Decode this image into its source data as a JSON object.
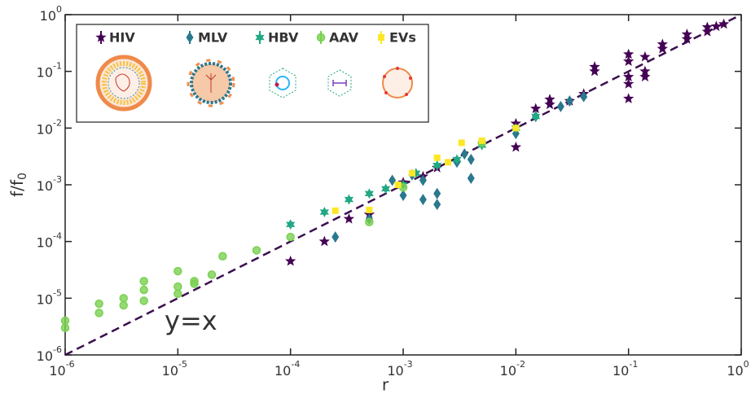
{
  "chart_data": {
    "type": "scatter",
    "xlabel": "r",
    "ylabel": {
      "text": "f/f",
      "subscript": "0"
    },
    "xscale": "log",
    "yscale": "log",
    "xlim": [
      1e-06,
      1
    ],
    "ylim": [
      1e-06,
      1
    ],
    "xticks": [
      {
        "value": 1e-06,
        "label": "10",
        "exponent": "-6"
      },
      {
        "value": 1e-05,
        "label": "10",
        "exponent": "-5"
      },
      {
        "value": 0.0001,
        "label": "10",
        "exponent": "-4"
      },
      {
        "value": 0.001,
        "label": "10",
        "exponent": "-3"
      },
      {
        "value": 0.01,
        "label": "10",
        "exponent": "-2"
      },
      {
        "value": 0.1,
        "label": "10",
        "exponent": "-1"
      },
      {
        "value": 1,
        "label": "10",
        "exponent": "0"
      }
    ],
    "yticks": [
      {
        "value": 1e-06,
        "label": "10",
        "exponent": "-6"
      },
      {
        "value": 1e-05,
        "label": "10",
        "exponent": "-5"
      },
      {
        "value": 0.0001,
        "label": "10",
        "exponent": "-4"
      },
      {
        "value": 0.001,
        "label": "10",
        "exponent": "-3"
      },
      {
        "value": 0.01,
        "label": "10",
        "exponent": "-2"
      },
      {
        "value": 0.1,
        "label": "10",
        "exponent": "-1"
      },
      {
        "value": 1,
        "label": "10",
        "exponent": "0"
      }
    ],
    "legend": "upper left",
    "reference_line": {
      "label": "y=x",
      "x": [
        1e-06,
        1
      ],
      "y": [
        1e-06,
        1
      ],
      "color": "#3b0f4f"
    },
    "series": [
      {
        "name": "HIV",
        "color": "#440154",
        "marker": "star",
        "x": [
          0.0001,
          0.0002,
          0.00033,
          0.0005,
          0.001,
          0.0015,
          0.002,
          0.01,
          0.01,
          0.015,
          0.02,
          0.02,
          0.03,
          0.04,
          0.05,
          0.05,
          0.1,
          0.1,
          0.1,
          0.1,
          0.1,
          0.14,
          0.14,
          0.14,
          0.2,
          0.2,
          0.33,
          0.33,
          0.5,
          0.5,
          0.6,
          0.7
        ],
        "values": [
          4.5e-05,
          0.0001,
          0.00025,
          0.0003,
          0.0011,
          0.0014,
          0.002,
          0.0046,
          0.012,
          0.022,
          0.032,
          0.026,
          0.03,
          0.04,
          0.12,
          0.1,
          0.2,
          0.15,
          0.08,
          0.06,
          0.033,
          0.18,
          0.1,
          0.08,
          0.3,
          0.25,
          0.45,
          0.37,
          0.6,
          0.5,
          0.62,
          0.68
        ]
      },
      {
        "name": "MLV",
        "color": "#2a788e",
        "marker": "diamond",
        "x": [
          0.00025,
          0.0005,
          0.0008,
          0.001,
          0.0012,
          0.0015,
          0.0015,
          0.002,
          0.002,
          0.003,
          0.0035,
          0.004,
          0.004,
          0.01,
          0.015,
          0.025,
          0.03,
          0.04
        ],
        "values": [
          0.00012,
          0.00025,
          0.0012,
          0.00065,
          0.0015,
          0.00055,
          0.0012,
          0.00045,
          0.0007,
          0.0025,
          0.0035,
          0.0028,
          0.0013,
          0.008,
          0.016,
          0.024,
          0.03,
          0.036
        ]
      },
      {
        "name": "HBV",
        "color": "#22a884",
        "marker": "hexstar",
        "x": [
          0.0001,
          0.0002,
          0.00033,
          0.0005,
          0.0007,
          0.001,
          0.0013,
          0.002,
          0.003,
          0.005,
          0.01,
          0.015
        ],
        "values": [
          0.0002,
          0.00033,
          0.00055,
          0.0007,
          0.00085,
          0.001,
          0.0016,
          0.0022,
          0.0028,
          0.005,
          0.01,
          0.016
        ]
      },
      {
        "name": "AAV",
        "color": "#7ad151",
        "marker": "circle",
        "x": [
          1e-06,
          1e-06,
          2e-06,
          2e-06,
          3.3e-06,
          3.3e-06,
          5e-06,
          5e-06,
          5e-06,
          1e-05,
          1e-05,
          1e-05,
          1.4e-05,
          1.4e-05,
          2e-05,
          2.5e-05,
          5e-05,
          0.0001,
          0.0005,
          0.001,
          0.005
        ],
        "values": [
          3e-06,
          4e-06,
          8e-06,
          5.5e-06,
          1e-05,
          7.5e-06,
          2e-05,
          1.4e-05,
          9e-06,
          3e-05,
          1.6e-05,
          1.2e-05,
          2e-05,
          1.8e-05,
          2.6e-05,
          5.5e-05,
          7e-05,
          0.00012,
          0.00022,
          0.0009,
          0.0055
        ]
      },
      {
        "name": "EVs",
        "color": "#fde725",
        "marker": "square",
        "x": [
          0.00025,
          0.0005,
          0.0009,
          0.0012,
          0.002,
          0.0025,
          0.0033,
          0.005,
          0.01
        ],
        "values": [
          0.00035,
          0.00036,
          0.001,
          0.0016,
          0.003,
          0.0025,
          0.0055,
          0.006,
          0.01
        ]
      }
    ]
  }
}
